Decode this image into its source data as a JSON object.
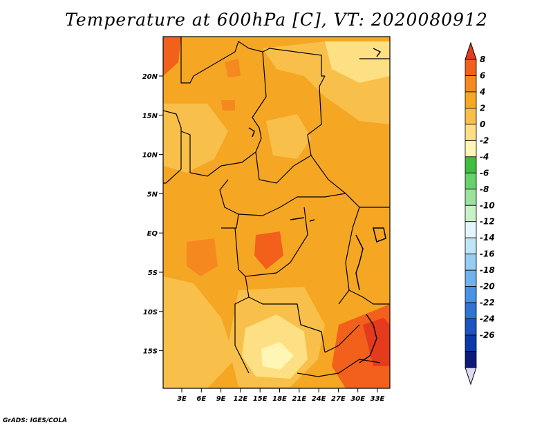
{
  "title": "Temperature at 600hPa [C], VT: 2020080912",
  "credit": "GrADS: IGES/COLA",
  "map": {
    "lat_labels": [
      "20N",
      "15N",
      "10N",
      "5N",
      "EQ",
      "5S",
      "10S",
      "15S"
    ],
    "lon_labels": [
      "3E",
      "6E",
      "9E",
      "12E",
      "15E",
      "18E",
      "21E",
      "24E",
      "27E",
      "30E",
      "33E"
    ],
    "base_color": "#f5a623"
  },
  "colorbar": {
    "labels": [
      "8",
      "6",
      "4",
      "2",
      "0",
      "-2",
      "-4",
      "-6",
      "-8",
      "-10",
      "-12",
      "-14",
      "-16",
      "-18",
      "-20",
      "-22",
      "-24",
      "-26"
    ],
    "colors": [
      "#e53a1c",
      "#f2601c",
      "#f5891f",
      "#f7a823",
      "#f8c04a",
      "#fde083",
      "#fff6b5",
      "#3fbf3f",
      "#67d26a",
      "#9be29b",
      "#c8f1c8",
      "#e4f6fb",
      "#bfe6f7",
      "#95cdf3",
      "#6fb2ec",
      "#4a93e2",
      "#2f74d3",
      "#1a55c2",
      "#0b3aa8",
      "#0c1a7a",
      "#dddcf5"
    ]
  }
}
